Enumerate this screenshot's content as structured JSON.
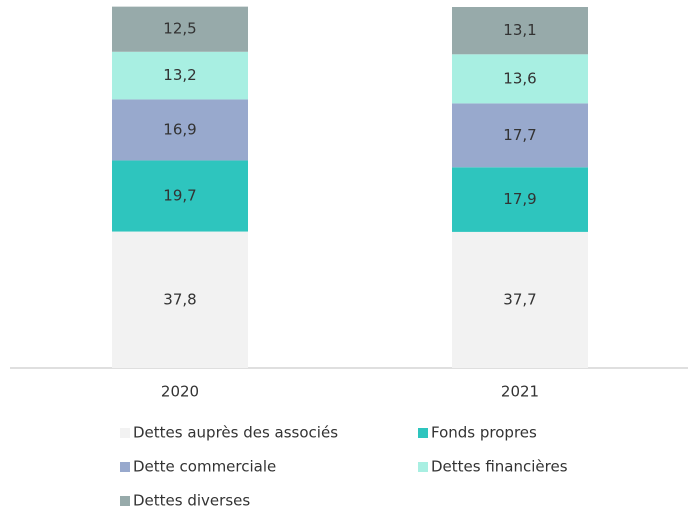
{
  "chart_data": {
    "type": "stacked_bar",
    "categories": [
      "2020",
      "2021"
    ],
    "series": [
      {
        "name": "Dettes auprès des associés",
        "color": "#f2f2f2",
        "values": [
          37.8,
          37.7
        ],
        "value_labels": [
          "37,8",
          "37,7"
        ]
      },
      {
        "name": "Fonds propres",
        "color": "#2ec5be",
        "values": [
          19.7,
          17.9
        ],
        "value_labels": [
          "19,7",
          "17,9"
        ]
      },
      {
        "name": "Dette commerciale",
        "color": "#98a9cd",
        "values": [
          16.9,
          17.7
        ],
        "value_labels": [
          "16,9",
          "17,7"
        ]
      },
      {
        "name": "Dettes financières",
        "color": "#a8efe2",
        "values": [
          13.2,
          13.6
        ],
        "value_labels": [
          "13,2",
          "13,6"
        ]
      },
      {
        "name": "Dettes diverses",
        "color": "#97aaaa",
        "values": [
          12.5,
          13.1
        ],
        "value_labels": [
          "12,5",
          "13,1"
        ]
      }
    ],
    "ylim": [
      0,
      100
    ]
  }
}
